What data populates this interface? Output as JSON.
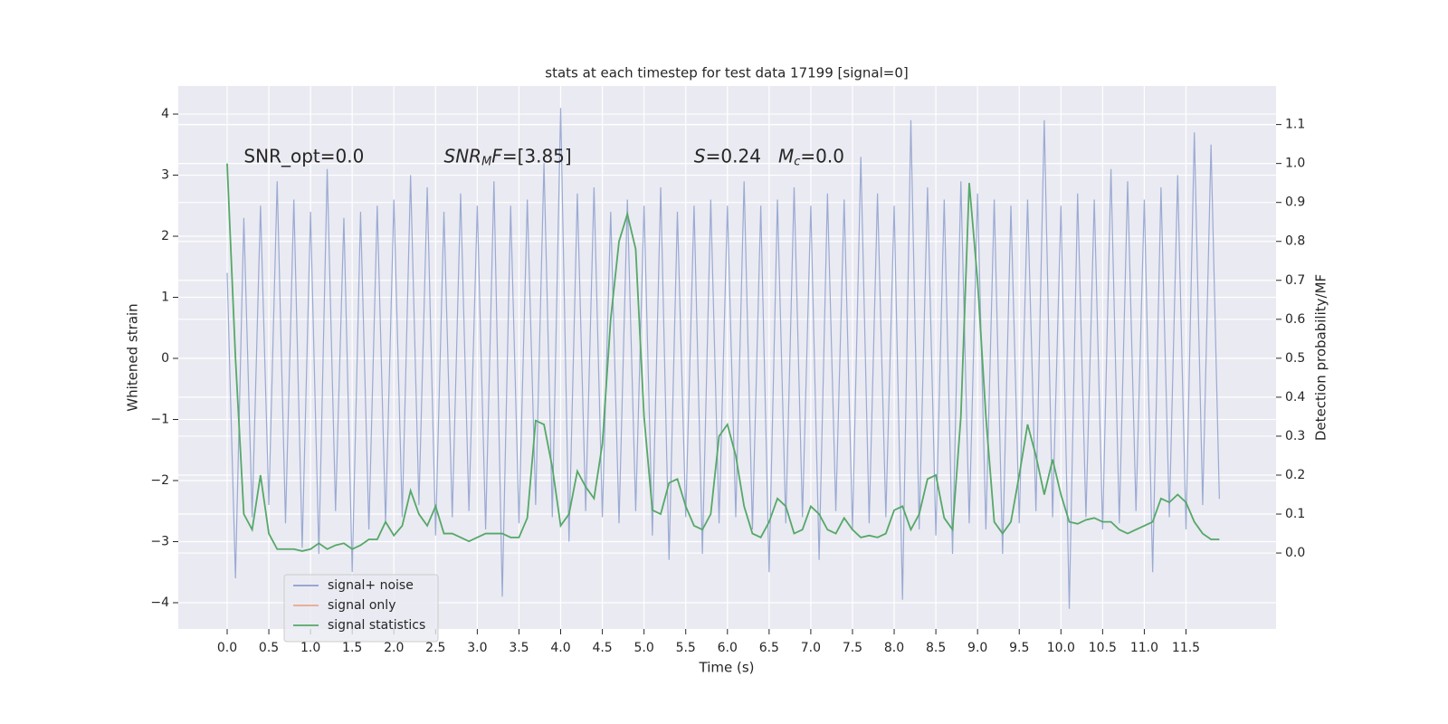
{
  "chart_data": {
    "type": "line",
    "title": "stats at each timestep for test data 17199 [signal=0]",
    "xlabel": "Time (s)",
    "ylabel": "Whitened strain",
    "y2label": "Detection probability/MF",
    "xlim": [
      -0.586,
      12.58
    ],
    "ylim": [
      -4.43,
      4.46
    ],
    "y2lim": [
      -0.195,
      1.199
    ],
    "xticks": [
      {
        "value": 0,
        "label": "0.0"
      },
      {
        "value": 0.5,
        "label": "0.5"
      },
      {
        "value": 1,
        "label": "1.0"
      },
      {
        "value": 1.5,
        "label": "1.5"
      },
      {
        "value": 2,
        "label": "2.0"
      },
      {
        "value": 2.5,
        "label": "2.5"
      },
      {
        "value": 3,
        "label": "3.0"
      },
      {
        "value": 3.5,
        "label": "3.5"
      },
      {
        "value": 4,
        "label": "4.0"
      },
      {
        "value": 4.5,
        "label": "4.5"
      },
      {
        "value": 5,
        "label": "5.0"
      },
      {
        "value": 5.5,
        "label": "5.5"
      },
      {
        "value": 6,
        "label": "6.0"
      },
      {
        "value": 6.5,
        "label": "6.5"
      },
      {
        "value": 7,
        "label": "7.0"
      },
      {
        "value": 7.5,
        "label": "7.5"
      },
      {
        "value": 8,
        "label": "8.0"
      },
      {
        "value": 8.5,
        "label": "8.5"
      },
      {
        "value": 9,
        "label": "9.0"
      },
      {
        "value": 9.5,
        "label": "9.5"
      },
      {
        "value": 10,
        "label": "10.0"
      },
      {
        "value": 10.5,
        "label": "10.5"
      },
      {
        "value": 11,
        "label": "11.0"
      },
      {
        "value": 11.5,
        "label": "11.5"
      }
    ],
    "yticks": [
      {
        "value": -4,
        "label": "−4"
      },
      {
        "value": -3,
        "label": "−3"
      },
      {
        "value": -2,
        "label": "−2"
      },
      {
        "value": -1,
        "label": "−1"
      },
      0,
      1,
      2,
      3,
      4
    ],
    "y2ticks": [
      {
        "value": 0,
        "label": "0.0"
      },
      {
        "value": 0.1,
        "label": "0.1"
      },
      {
        "value": 0.2,
        "label": "0.2"
      },
      {
        "value": 0.3,
        "label": "0.3"
      },
      {
        "value": 0.4,
        "label": "0.4"
      },
      {
        "value": 0.5,
        "label": "0.5"
      },
      {
        "value": 0.6,
        "label": "0.6"
      },
      {
        "value": 0.7,
        "label": "0.7"
      },
      {
        "value": 0.8,
        "label": "0.8"
      },
      {
        "value": 0.9,
        "label": "0.9"
      },
      {
        "value": 1,
        "label": "1.0"
      },
      {
        "value": 1.1,
        "label": "1.1"
      }
    ],
    "grid": true,
    "legend": "lower left",
    "annotations": [
      {
        "x": 0.2,
        "y": 3.3,
        "parts": [
          {
            "text": "SNR_opt=0.0",
            "style": "normal"
          }
        ]
      },
      {
        "x": 2.6,
        "y": 3.3,
        "parts": [
          {
            "text": "SNR",
            "style": "italic"
          },
          {
            "text": "M",
            "style": "sub"
          },
          {
            "text": "F",
            "style": "italic"
          },
          {
            "text": "=[3.85]",
            "style": "normal"
          }
        ]
      },
      {
        "x": 5.6,
        "y": 3.3,
        "parts": [
          {
            "text": "S",
            "style": "italic"
          },
          {
            "text": "=0.24   ",
            "style": "normal"
          },
          {
            "text": "M",
            "style": "italic"
          },
          {
            "text": "c",
            "style": "sub"
          },
          {
            "text": "=0.0",
            "style": "normal"
          }
        ]
      }
    ],
    "series": [
      {
        "name": "signal+ noise",
        "color": "#8c9fcc",
        "opacity": 0.85,
        "axis": "y",
        "x": [
          0,
          0.1,
          0.2,
          0.3,
          0.4,
          0.5,
          0.6,
          0.7,
          0.8,
          0.9,
          1,
          1.1,
          1.2,
          1.3,
          1.4,
          1.5,
          1.6,
          1.7,
          1.8,
          1.9,
          2,
          2.1,
          2.2,
          2.3,
          2.4,
          2.5,
          2.6,
          2.7,
          2.8,
          2.9,
          3,
          3.1,
          3.2,
          3.3,
          3.4,
          3.5,
          3.6,
          3.7,
          3.8,
          3.9,
          4,
          4.1,
          4.2,
          4.3,
          4.4,
          4.5,
          4.6,
          4.7,
          4.8,
          4.9,
          5,
          5.1,
          5.2,
          5.3,
          5.4,
          5.5,
          5.6,
          5.7,
          5.8,
          5.9,
          6,
          6.1,
          6.2,
          6.3,
          6.4,
          6.5,
          6.6,
          6.7,
          6.8,
          6.9,
          7,
          7.1,
          7.2,
          7.3,
          7.4,
          7.5,
          7.6,
          7.7,
          7.8,
          7.9,
          8,
          8.1,
          8.2,
          8.3,
          8.4,
          8.5,
          8.6,
          8.7,
          8.8,
          8.9,
          9,
          9.1,
          9.2,
          9.3,
          9.4,
          9.5,
          9.6,
          9.7,
          9.8,
          9.9,
          10,
          10.1,
          10.2,
          10.3,
          10.4,
          10.5,
          10.6,
          10.7,
          10.8,
          10.9,
          11,
          11.1,
          11.2,
          11.3,
          11.4,
          11.5,
          11.6,
          11.7,
          11.8,
          11.9
        ],
        "values": [
          1.4,
          -3.6,
          2.3,
          -2.6,
          2.5,
          -2.4,
          2.9,
          -2.7,
          2.6,
          -3.1,
          2.4,
          -3.2,
          3.1,
          -2.5,
          2.3,
          -3.5,
          2.4,
          -2.8,
          2.5,
          -2.7,
          2.6,
          -2.6,
          3.0,
          -2.4,
          2.8,
          -2.9,
          2.4,
          -2.6,
          2.7,
          -2.5,
          2.5,
          -2.8,
          2.9,
          -3.9,
          2.5,
          -2.7,
          2.6,
          -2.4,
          3.2,
          -2.6,
          4.1,
          -3.0,
          2.7,
          -2.5,
          2.8,
          -2.6,
          2.4,
          -2.7,
          2.6,
          -2.5,
          2.5,
          -2.9,
          2.8,
          -3.3,
          2.4,
          -2.6,
          2.5,
          -3.2,
          2.6,
          -2.7,
          2.5,
          -2.6,
          2.9,
          -2.8,
          2.5,
          -3.5,
          2.6,
          -2.7,
          2.8,
          -2.6,
          2.5,
          -3.3,
          2.7,
          -2.5,
          2.6,
          -2.8,
          3.3,
          -2.7,
          2.7,
          -2.6,
          2.5,
          -3.95,
          3.9,
          -2.8,
          2.8,
          -2.9,
          2.6,
          -3.2,
          2.9,
          -2.7,
          2.7,
          -2.8,
          2.6,
          -3.2,
          2.5,
          -2.7,
          2.6,
          -2.5,
          3.9,
          -2.6,
          2.5,
          -4.1,
          2.7,
          -2.6,
          2.6,
          -2.8,
          3.1,
          -2.7,
          2.9,
          -2.5,
          2.6,
          -3.5,
          2.8,
          -2.6,
          3.0,
          -2.8,
          3.7,
          -2.4,
          3.5,
          -2.3
        ]
      },
      {
        "name": "signal only",
        "color": "#e8a88a",
        "opacity": 1,
        "axis": "y",
        "x": [],
        "values": []
      },
      {
        "name": "signal statistics",
        "color": "#55a868",
        "opacity": 1,
        "axis": "y2",
        "x": [
          0,
          0.1,
          0.2,
          0.3,
          0.4,
          0.5,
          0.6,
          0.7,
          0.8,
          0.9,
          1,
          1.1,
          1.2,
          1.3,
          1.4,
          1.5,
          1.6,
          1.7,
          1.8,
          1.9,
          2,
          2.1,
          2.2,
          2.3,
          2.4,
          2.5,
          2.6,
          2.7,
          2.8,
          2.9,
          3,
          3.1,
          3.2,
          3.3,
          3.4,
          3.5,
          3.6,
          3.7,
          3.8,
          3.9,
          4,
          4.1,
          4.2,
          4.3,
          4.4,
          4.5,
          4.6,
          4.7,
          4.8,
          4.9,
          5,
          5.1,
          5.2,
          5.3,
          5.4,
          5.5,
          5.6,
          5.7,
          5.8,
          5.9,
          6,
          6.1,
          6.2,
          6.3,
          6.4,
          6.5,
          6.6,
          6.7,
          6.8,
          6.9,
          7,
          7.1,
          7.2,
          7.3,
          7.4,
          7.5,
          7.6,
          7.7,
          7.8,
          7.9,
          8,
          8.1,
          8.2,
          8.3,
          8.4,
          8.5,
          8.6,
          8.7,
          8.8,
          8.9,
          9,
          9.1,
          9.2,
          9.3,
          9.4,
          9.5,
          9.6,
          9.7,
          9.8,
          9.9,
          10,
          10.1,
          10.2,
          10.3,
          10.4,
          10.5,
          10.6,
          10.7,
          10.8,
          10.9,
          11,
          11.1,
          11.2,
          11.3,
          11.4,
          11.5,
          11.6,
          11.7,
          11.8,
          11.9
        ],
        "values": [
          1.0,
          0.5,
          0.1,
          0.06,
          0.2,
          0.05,
          0.01,
          0.01,
          0.01,
          0.005,
          0.01,
          0.025,
          0.01,
          0.02,
          0.025,
          0.01,
          0.02,
          0.035,
          0.035,
          0.08,
          0.045,
          0.07,
          0.16,
          0.1,
          0.07,
          0.12,
          0.05,
          0.05,
          0.04,
          0.03,
          0.04,
          0.05,
          0.05,
          0.05,
          0.04,
          0.04,
          0.09,
          0.34,
          0.33,
          0.22,
          0.07,
          0.1,
          0.21,
          0.17,
          0.14,
          0.28,
          0.6,
          0.8,
          0.87,
          0.78,
          0.35,
          0.11,
          0.1,
          0.18,
          0.19,
          0.12,
          0.07,
          0.06,
          0.1,
          0.3,
          0.33,
          0.25,
          0.12,
          0.05,
          0.04,
          0.08,
          0.14,
          0.12,
          0.05,
          0.06,
          0.12,
          0.1,
          0.06,
          0.05,
          0.09,
          0.06,
          0.04,
          0.045,
          0.04,
          0.05,
          0.11,
          0.12,
          0.06,
          0.1,
          0.19,
          0.2,
          0.09,
          0.06,
          0.35,
          0.95,
          0.7,
          0.35,
          0.08,
          0.05,
          0.08,
          0.2,
          0.33,
          0.25,
          0.15,
          0.24,
          0.15,
          0.08,
          0.075,
          0.085,
          0.09,
          0.08,
          0.08,
          0.06,
          0.05,
          0.06,
          0.07,
          0.08,
          0.14,
          0.13,
          0.15,
          0.13,
          0.08,
          0.05,
          0.035,
          0.035
        ]
      }
    ]
  }
}
